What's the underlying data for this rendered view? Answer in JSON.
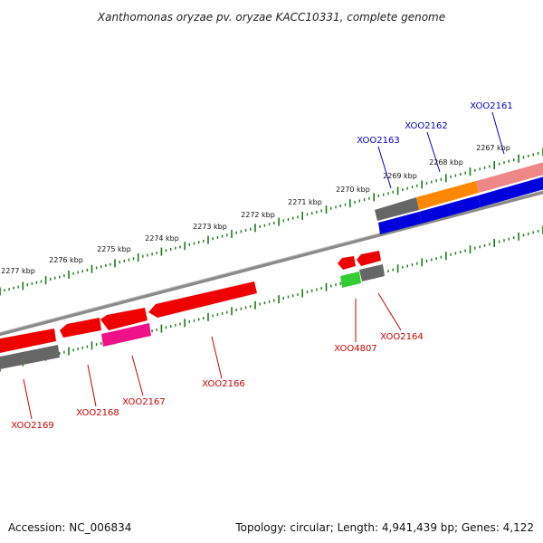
{
  "title": "Xanthomonas oryzae pv. oryzae KACC10331, complete genome",
  "footer": {
    "accession": "Accession: NC_006834",
    "topology": "Topology: circular; Length: 4,941,439 bp; Genes: 4,122"
  },
  "colors": {
    "tick": "#1a7a1a",
    "forward_label": "#0000cc",
    "reverse_label": "#cc0000",
    "backbone": "#8a8a8a",
    "red": "#ee0000",
    "grey": "#666666",
    "blue": "#0000dd",
    "orange": "#ff8800",
    "pink": "#ee8888",
    "magenta": "#ee1188",
    "green": "#33cc33"
  },
  "scale_labels": [
    "2267 kbp",
    "2268 kbp",
    "2269 kbp",
    "2270 kbp",
    "2271 kbp",
    "2272 kbp",
    "2273 kbp",
    "2274 kbp",
    "2275 kbp",
    "2276 kbp",
    "2277 kbp"
  ],
  "gene_labels": {
    "forward": [
      "XOO2161",
      "XOO2162",
      "XOO2163"
    ],
    "reverse": [
      "XOO2164",
      "XOO4807",
      "XOO2166",
      "XOO2167",
      "XOO2168",
      "XOO2169"
    ]
  }
}
